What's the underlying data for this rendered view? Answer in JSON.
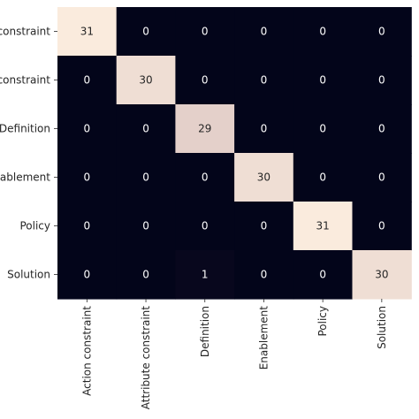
{
  "chart_data": {
    "type": "heatmap",
    "title": "",
    "xlabel": "",
    "ylabel": "",
    "x_labels": [
      "Action constraint",
      "Attribute constraint",
      "Definition",
      "Enablement",
      "Policy",
      "Solution"
    ],
    "y_labels_visible": [
      "constraint",
      "constraint",
      "Definition",
      "ablement",
      "Policy",
      "Solution"
    ],
    "matrix": [
      [
        31,
        0,
        0,
        0,
        0,
        0
      ],
      [
        0,
        30,
        0,
        0,
        0,
        0
      ],
      [
        0,
        0,
        29,
        0,
        0,
        0
      ],
      [
        0,
        0,
        0,
        30,
        0,
        0
      ],
      [
        0,
        0,
        0,
        0,
        31,
        0
      ],
      [
        0,
        0,
        1,
        0,
        0,
        30
      ]
    ],
    "value_range": [
      0,
      31
    ],
    "colormap": {
      "low": "#03051a",
      "mid": "#4c1d4b",
      "high": "#faebdd"
    },
    "annotation_colors": {
      "on_dark": "#ffffff",
      "on_light": "#262626"
    },
    "colorbar": false,
    "grid": false
  }
}
